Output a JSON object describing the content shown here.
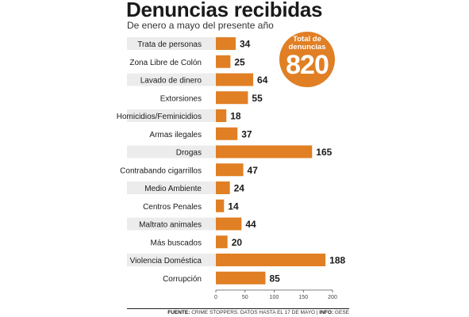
{
  "header": {
    "title": "Denuncias recibidas",
    "subtitle": "De enero a mayo del presente año"
  },
  "badge": {
    "label": "Total de denuncias",
    "value": "820"
  },
  "footer": {
    "source_label": "FUENTE:",
    "source_text": " CRIME STOPPERS. DATOS HASTA EL 17 DE MAYO | ",
    "info_label": "INFO:",
    "info_text": " GESE"
  },
  "chart_data": {
    "type": "bar",
    "orientation": "horizontal",
    "title": "Denuncias recibidas",
    "subtitle": "De enero a mayo del presente año",
    "categories": [
      "Trata de personas",
      "Zona Libre de Colón",
      "Lavado de dinero",
      "Extorsiones",
      "Homicidios/Feminicidios",
      "Armas ilegales",
      "Drogas",
      "Contrabando cigarrillos",
      "Medio Ambiente",
      "Centros Penales",
      "Maltrato animales",
      "Más buscados",
      "Violencia Doméstica",
      "Corrupción"
    ],
    "values": [
      34,
      25,
      64,
      55,
      18,
      37,
      165,
      47,
      24,
      14,
      44,
      20,
      188,
      85
    ],
    "xlim": [
      0,
      200
    ],
    "xticks": [
      0,
      50,
      100,
      150,
      200
    ],
    "bar_color": "#e07f24",
    "label_band_color": "#ececec",
    "grid": false
  }
}
